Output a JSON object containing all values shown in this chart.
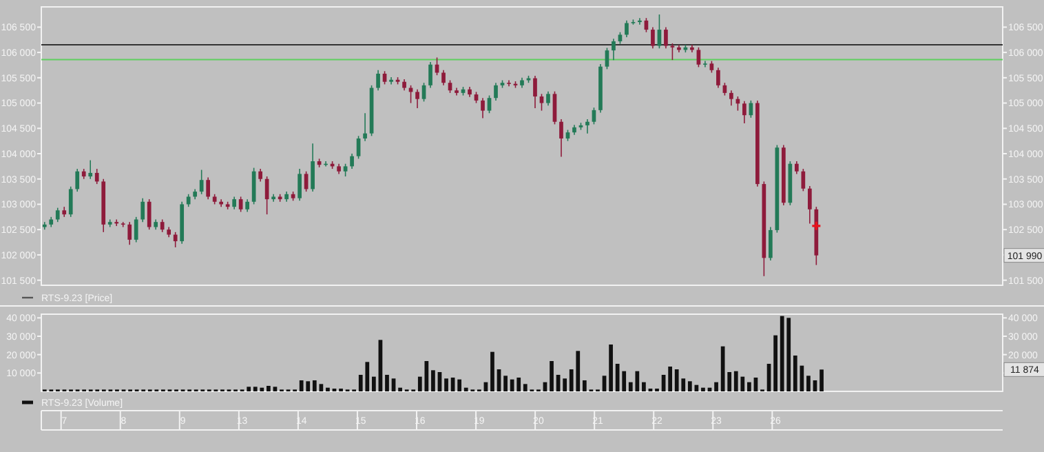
{
  "chart_data": [
    {
      "type": "candlestick",
      "tick_labels": "y",
      "legend_title": "RTS-9.23 [Price]",
      "categories": [
        null,
        null,
        null,
        null,
        null,
        null,
        null,
        null,
        null,
        null,
        null,
        null,
        null,
        null,
        null,
        null,
        null,
        null,
        null,
        null,
        null,
        null,
        null,
        null,
        null,
        null,
        null,
        null,
        null,
        null,
        null,
        null,
        null,
        null,
        null,
        null,
        null,
        null,
        null,
        null,
        null,
        null,
        null,
        null,
        null,
        null,
        null,
        null,
        null,
        null,
        null,
        null,
        null,
        null,
        null,
        null,
        null,
        null,
        null,
        null,
        null,
        null,
        null,
        null,
        null,
        null,
        null,
        null,
        null,
        null,
        null,
        null,
        null,
        null,
        null,
        null,
        null,
        null,
        null,
        null,
        null,
        null,
        null,
        null,
        null,
        null,
        null,
        null,
        null,
        null,
        null,
        null,
        null,
        null,
        null,
        null,
        null,
        null,
        null,
        null,
        null,
        null,
        null,
        null,
        null,
        null,
        null,
        null,
        null,
        null,
        null,
        null,
        null,
        null,
        null,
        null,
        null,
        null,
        null,
        null,
        null,
        null,
        null,
        null,
        null,
        null,
        null,
        null,
        null,
        null,
        null,
        null,
        null,
        null,
        null,
        null,
        null,
        null,
        null,
        null,
        null,
        null,
        null,
        null,
        null,
        null,
        null
      ],
      "ohlc": [
        [
          102550,
          102650,
          102500,
          102600
        ],
        [
          102600,
          102750,
          102550,
          102700
        ],
        [
          102700,
          102930,
          102650,
          102880
        ],
        [
          102880,
          102950,
          102750,
          102800
        ],
        [
          102800,
          103350,
          102750,
          103300
        ],
        [
          103300,
          103700,
          103250,
          103650
        ],
        [
          103650,
          103700,
          103500,
          103550
        ],
        [
          103550,
          103870,
          103500,
          103620
        ],
        [
          103620,
          103700,
          103400,
          103450
        ],
        [
          103450,
          103500,
          102450,
          102600
        ],
        [
          102600,
          102700,
          102550,
          102650
        ],
        [
          102650,
          102700,
          102570,
          102620
        ],
        [
          102620,
          102650,
          102550,
          102600
        ],
        [
          102600,
          102650,
          102200,
          102300
        ],
        [
          102300,
          102750,
          102250,
          102700
        ],
        [
          102700,
          103120,
          102650,
          103050
        ],
        [
          103050,
          103100,
          102500,
          102550
        ],
        [
          102550,
          102700,
          102500,
          102650
        ],
        [
          102650,
          102700,
          102450,
          102500
        ],
        [
          102500,
          102550,
          102350,
          102400
        ],
        [
          102400,
          102450,
          102150,
          102270
        ],
        [
          102270,
          103050,
          102220,
          103000
        ],
        [
          103000,
          103200,
          102950,
          103150
        ],
        [
          103150,
          103300,
          103100,
          103250
        ],
        [
          103250,
          103680,
          103200,
          103480
        ],
        [
          103480,
          103530,
          103100,
          103150
        ],
        [
          103150,
          103200,
          103000,
          103050
        ],
        [
          103050,
          103100,
          102950,
          103000
        ],
        [
          103000,
          103050,
          102900,
          102950
        ],
        [
          102950,
          103150,
          102900,
          103100
        ],
        [
          103100,
          103150,
          102850,
          102900
        ],
        [
          102900,
          103100,
          102850,
          103050
        ],
        [
          103050,
          103720,
          103000,
          103650
        ],
        [
          103650,
          103700,
          103450,
          103500
        ],
        [
          103500,
          103550,
          102800,
          103100
        ],
        [
          103100,
          103200,
          103050,
          103150
        ],
        [
          103150,
          103200,
          103050,
          103100
        ],
        [
          103100,
          103250,
          103050,
          103200
        ],
        [
          103200,
          103250,
          103070,
          103120
        ],
        [
          103120,
          103700,
          103070,
          103600
        ],
        [
          103600,
          103650,
          103250,
          103300
        ],
        [
          103300,
          104200,
          103250,
          103850
        ],
        [
          103850,
          103900,
          103730,
          103780
        ],
        [
          103780,
          103850,
          103750,
          103800
        ],
        [
          103800,
          103850,
          103700,
          103750
        ],
        [
          103750,
          103800,
          103600,
          103650
        ],
        [
          103650,
          103800,
          103550,
          103750
        ],
        [
          103750,
          104000,
          103700,
          103950
        ],
        [
          103950,
          104350,
          103900,
          104300
        ],
        [
          104300,
          104800,
          104250,
          104400
        ],
        [
          104400,
          105350,
          104350,
          105300
        ],
        [
          105300,
          105650,
          105250,
          105580
        ],
        [
          105580,
          105630,
          105370,
          105420
        ],
        [
          105420,
          105510,
          105370,
          105460
        ],
        [
          105460,
          105510,
          105370,
          105420
        ],
        [
          105420,
          105470,
          105250,
          105300
        ],
        [
          105300,
          105350,
          105000,
          105220
        ],
        [
          105220,
          105270,
          104900,
          105080
        ],
        [
          105080,
          105400,
          105030,
          105350
        ],
        [
          105350,
          105810,
          105300,
          105760
        ],
        [
          105760,
          105900,
          105550,
          105600
        ],
        [
          105600,
          105650,
          105350,
          105400
        ],
        [
          105400,
          105450,
          105200,
          105250
        ],
        [
          105250,
          105300,
          105150,
          105200
        ],
        [
          105200,
          105320,
          105150,
          105270
        ],
        [
          105270,
          105320,
          105120,
          105170
        ],
        [
          105170,
          105220,
          105000,
          105050
        ],
        [
          105050,
          105100,
          104700,
          104850
        ],
        [
          104850,
          105150,
          104800,
          105100
        ],
        [
          105100,
          105400,
          105050,
          105350
        ],
        [
          105350,
          105450,
          105300,
          105400
        ],
        [
          105400,
          105450,
          105330,
          105380
        ],
        [
          105380,
          105430,
          105300,
          105350
        ],
        [
          105350,
          105500,
          105300,
          105450
        ],
        [
          105450,
          105540,
          105400,
          105490
        ],
        [
          105490,
          105540,
          104900,
          105130
        ],
        [
          105130,
          105180,
          104850,
          105000
        ],
        [
          105000,
          105230,
          104950,
          105180
        ],
        [
          105180,
          105230,
          104580,
          104630
        ],
        [
          104630,
          104680,
          103940,
          104300
        ],
        [
          104300,
          104470,
          104250,
          104420
        ],
        [
          104420,
          104570,
          104370,
          104520
        ],
        [
          104520,
          104610,
          104470,
          104560
        ],
        [
          104560,
          104680,
          104400,
          104630
        ],
        [
          104630,
          104910,
          104580,
          104860
        ],
        [
          104860,
          105770,
          104810,
          105720
        ],
        [
          105720,
          106090,
          105670,
          106040
        ],
        [
          106040,
          106270,
          105850,
          106220
        ],
        [
          106220,
          106400,
          106170,
          106350
        ],
        [
          106350,
          106630,
          106300,
          106580
        ],
        [
          106580,
          106650,
          106550,
          106600
        ],
        [
          106600,
          106680,
          106550,
          106630
        ],
        [
          106630,
          106680,
          106400,
          106450
        ],
        [
          106450,
          106500,
          106080,
          106130
        ],
        [
          106130,
          106750,
          106080,
          106450
        ],
        [
          106450,
          106500,
          106080,
          106130
        ],
        [
          106130,
          106180,
          105850,
          106100
        ],
        [
          106100,
          106150,
          106000,
          106050
        ],
        [
          106050,
          106150,
          106000,
          106100
        ],
        [
          106100,
          106150,
          106000,
          106050
        ],
        [
          106050,
          106100,
          105710,
          105760
        ],
        [
          105760,
          105830,
          105710,
          105780
        ],
        [
          105780,
          105830,
          105600,
          105650
        ],
        [
          105650,
          105700,
          105300,
          105350
        ],
        [
          105350,
          105400,
          105150,
          105200
        ],
        [
          105200,
          105250,
          104950,
          105080
        ],
        [
          105080,
          105130,
          104850,
          104990
        ],
        [
          104990,
          105040,
          104600,
          104760
        ],
        [
          104760,
          105050,
          104710,
          105000
        ],
        [
          105000,
          105050,
          103350,
          103400
        ],
        [
          103400,
          103450,
          101580,
          101940
        ],
        [
          101940,
          102550,
          101890,
          102490
        ],
        [
          102490,
          104170,
          102440,
          104120
        ],
        [
          104120,
          104170,
          102980,
          103030
        ],
        [
          103030,
          103850,
          102980,
          103800
        ],
        [
          103800,
          103850,
          103600,
          103650
        ],
        [
          103650,
          103700,
          103260,
          103310
        ],
        [
          103310,
          103360,
          102620,
          102900
        ],
        [
          102900,
          102950,
          101800,
          101990
        ],
        null,
        null,
        null,
        null,
        null,
        null,
        null,
        null,
        null,
        null,
        null,
        null,
        null,
        null,
        null,
        null,
        null,
        null,
        null,
        null,
        null,
        null,
        null,
        null,
        null,
        null,
        null,
        null
      ],
      "ylim": [
        101400,
        106900
      ],
      "yticks": [
        {
          "value": 101500,
          "label": "101 500"
        },
        {
          "value": 102000,
          "label": "102 000"
        },
        {
          "value": 102500,
          "label": "102 500"
        },
        {
          "value": 103000,
          "label": "103 000"
        },
        {
          "value": 103500,
          "label": "103 500"
        },
        {
          "value": 104000,
          "label": "104 000"
        },
        {
          "value": 104500,
          "label": "104 500"
        },
        {
          "value": 105000,
          "label": "105 000"
        },
        {
          "value": 105500,
          "label": "105 500"
        },
        {
          "value": 106000,
          "label": "106 000"
        },
        {
          "value": 106500,
          "label": "106 500"
        }
      ],
      "y2lim": [
        101400,
        106900
      ],
      "y2ticks": [
        {
          "value": 101500,
          "label": "101 500"
        },
        {
          "value": 102000,
          "label": null
        },
        {
          "value": 102500,
          "label": "102 500"
        },
        {
          "value": 103000,
          "label": "103 000"
        },
        {
          "value": 103500,
          "label": "103 500"
        },
        {
          "value": 104000,
          "label": "104 000"
        },
        {
          "value": 104500,
          "label": "104 500"
        },
        {
          "value": 105000,
          "label": "105 000"
        },
        {
          "value": 105500,
          "label": "105 500"
        },
        {
          "value": 106000,
          "label": "106 000"
        },
        {
          "value": 106500,
          "label": "106 500"
        }
      ],
      "ref_lines": [
        {
          "axis": "y",
          "value": 106150,
          "color": "#333333"
        },
        {
          "axis": "y",
          "value": 105860,
          "color": "#5ecf5e"
        }
      ],
      "annotations": [
        {
          "text": "101 990",
          "y": 101990
        }
      ]
    },
    {
      "type": "bar",
      "legend": "bottom left",
      "categories": [
        null,
        null,
        null,
        "7",
        null,
        null,
        null,
        null,
        null,
        null,
        null,
        null,
        "8",
        null,
        null,
        null,
        null,
        null,
        null,
        null,
        null,
        "9",
        null,
        null,
        null,
        null,
        null,
        null,
        null,
        null,
        "13",
        null,
        null,
        null,
        null,
        null,
        null,
        null,
        null,
        "14",
        null,
        null,
        null,
        null,
        null,
        null,
        null,
        null,
        "15",
        null,
        null,
        null,
        null,
        null,
        null,
        null,
        null,
        "16",
        null,
        null,
        null,
        null,
        null,
        null,
        null,
        null,
        "19",
        null,
        null,
        null,
        null,
        null,
        null,
        null,
        null,
        "20",
        null,
        null,
        null,
        null,
        null,
        null,
        null,
        null,
        "21",
        null,
        null,
        null,
        null,
        null,
        null,
        null,
        null,
        "22",
        null,
        null,
        null,
        null,
        null,
        null,
        null,
        null,
        "23",
        null,
        null,
        null,
        null,
        null,
        null,
        null,
        null,
        "26",
        null,
        null,
        null,
        null,
        null,
        null,
        null,
        null,
        null,
        null,
        null,
        null,
        null,
        null,
        null,
        null,
        null,
        null,
        null,
        null,
        null,
        null,
        null,
        null,
        null,
        null,
        null,
        null,
        null,
        null,
        null,
        null,
        null,
        null
      ],
      "series": [
        {
          "name": "RTS-9.23 [Volume]",
          "color": "#111111",
          "values": [
            1000,
            1000,
            1000,
            1000,
            1000,
            1000,
            1000,
            1000,
            1000,
            1000,
            1000,
            1000,
            1000,
            1000,
            1000,
            1000,
            1000,
            1000,
            1000,
            1000,
            1000,
            1000,
            1000,
            1000,
            1000,
            1000,
            1000,
            1000,
            1000,
            1000,
            1000,
            2500,
            2500,
            2000,
            3000,
            2500,
            1000,
            1000,
            1000,
            6000,
            5500,
            6000,
            4000,
            2000,
            1500,
            1500,
            1000,
            1000,
            9000,
            16000,
            8000,
            28000,
            9000,
            7000,
            2000,
            1000,
            1000,
            8000,
            16500,
            11500,
            10500,
            7000,
            7500,
            6500,
            2000,
            1000,
            1000,
            5000,
            21500,
            12000,
            8500,
            6500,
            7500,
            4000,
            1000,
            1000,
            5000,
            16500,
            9000,
            7000,
            12000,
            22000,
            6000,
            1000,
            1000,
            8500,
            25500,
            15000,
            11000,
            5000,
            11000,
            5000,
            1500,
            1500,
            9000,
            13500,
            12000,
            7000,
            5500,
            3500,
            2000,
            2000,
            5000,
            24500,
            10500,
            11000,
            8000,
            5000,
            7500,
            1000,
            15000,
            30500,
            41000,
            40000,
            19500,
            14000,
            8500,
            6000,
            11874,
            null,
            null,
            null,
            null,
            null,
            null,
            null,
            null,
            null,
            null,
            null,
            null,
            null,
            null,
            null,
            null,
            null,
            null,
            null,
            null,
            null,
            null,
            null,
            null,
            null,
            null,
            null
          ]
        }
      ],
      "ylim": [
        0,
        42000
      ],
      "yticks": [
        {
          "value": 10000,
          "label": "10 000"
        },
        {
          "value": 20000,
          "label": "20 000"
        },
        {
          "value": 30000,
          "label": "30 000"
        },
        {
          "value": 40000,
          "label": "40 000"
        }
      ],
      "y2lim": [
        0,
        42000
      ],
      "y2ticks": [
        {
          "value": 10000,
          "label": null
        },
        {
          "value": 20000,
          "label": "20 000"
        },
        {
          "value": 30000,
          "label": "30 000"
        },
        {
          "value": 40000,
          "label": "40 000"
        }
      ],
      "annotations": [
        {
          "text": "11 874",
          "y": 11874
        }
      ]
    }
  ]
}
